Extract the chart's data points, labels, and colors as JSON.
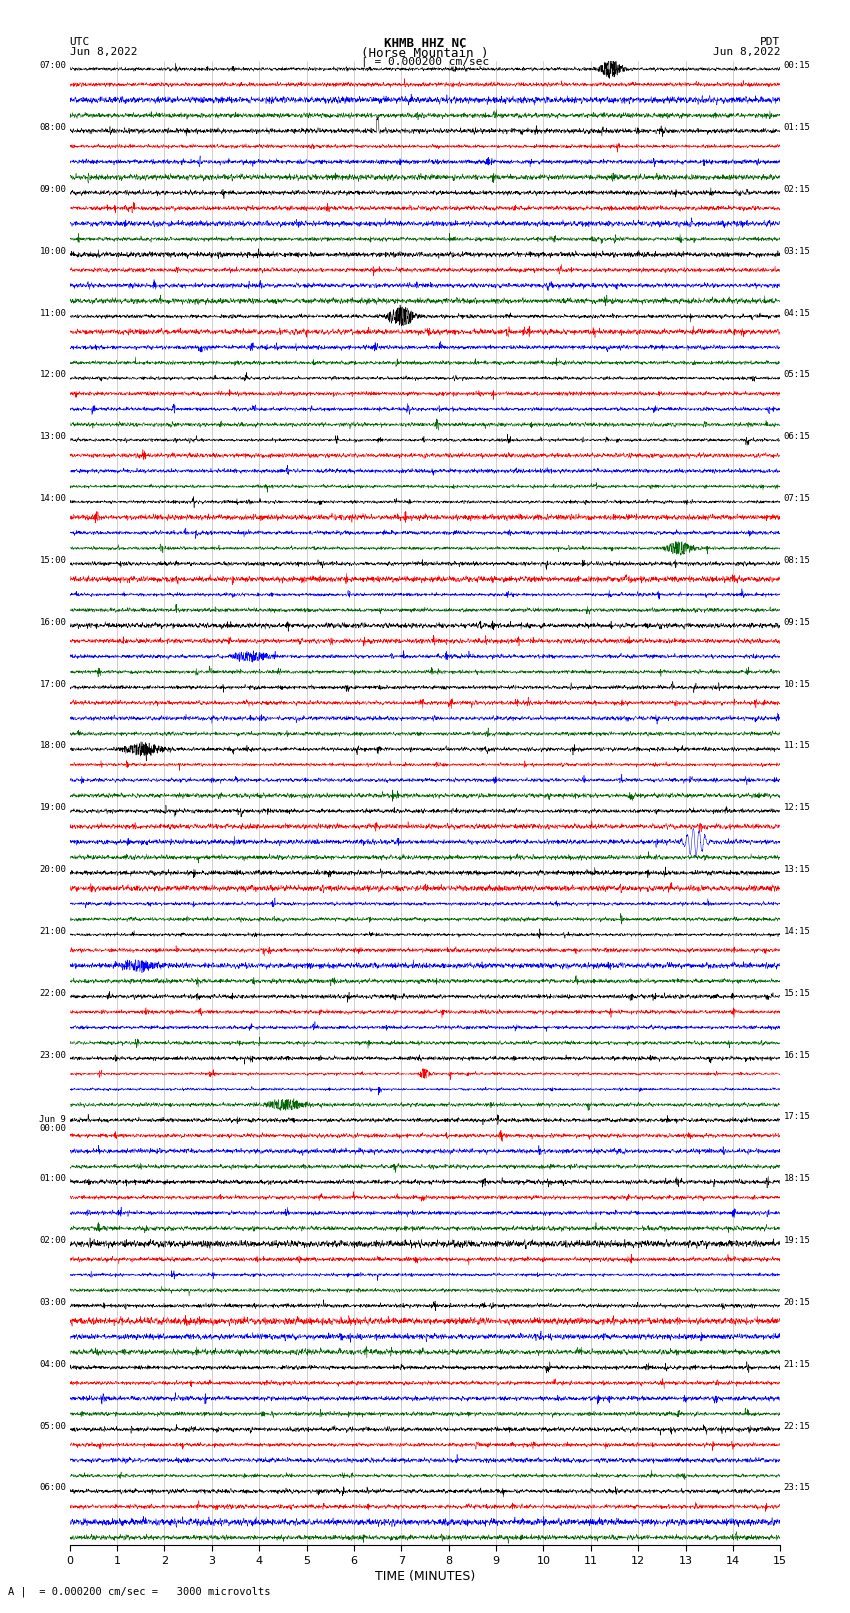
{
  "title_line1": "KHMB HHZ NC",
  "title_line2": "(Horse Mountain )",
  "title_scale": "| = 0.000200 cm/sec",
  "left_label": "UTC",
  "left_date": "Jun 8,2022",
  "right_label": "PDT",
  "right_date": "Jun 8,2022",
  "xlabel": "TIME (MINUTES)",
  "scale_text": "A |  = 0.000200 cm/sec =   3000 microvolts",
  "utc_times": [
    "07:00",
    "",
    "",
    "",
    "08:00",
    "",
    "",
    "",
    "09:00",
    "",
    "",
    "",
    "10:00",
    "",
    "",
    "",
    "11:00",
    "",
    "",
    "",
    "12:00",
    "",
    "",
    "",
    "13:00",
    "",
    "",
    "",
    "14:00",
    "",
    "",
    "",
    "15:00",
    "",
    "",
    "",
    "16:00",
    "",
    "",
    "",
    "17:00",
    "",
    "",
    "",
    "18:00",
    "",
    "",
    "",
    "19:00",
    "",
    "",
    "",
    "20:00",
    "",
    "",
    "",
    "21:00",
    "",
    "",
    "",
    "22:00",
    "",
    "",
    "",
    "23:00",
    "",
    "",
    "",
    "Jun 9\n00:00",
    "",
    "",
    "",
    "01:00",
    "",
    "",
    "",
    "02:00",
    "",
    "",
    "",
    "03:00",
    "",
    "",
    "",
    "04:00",
    "",
    "",
    "",
    "05:00",
    "",
    "",
    "",
    "06:00",
    "",
    "",
    ""
  ],
  "pdt_times": [
    "00:15",
    "",
    "",
    "",
    "01:15",
    "",
    "",
    "",
    "02:15",
    "",
    "",
    "",
    "03:15",
    "",
    "",
    "",
    "04:15",
    "",
    "",
    "",
    "05:15",
    "",
    "",
    "",
    "06:15",
    "",
    "",
    "",
    "07:15",
    "",
    "",
    "",
    "08:15",
    "",
    "",
    "",
    "09:15",
    "",
    "",
    "",
    "10:15",
    "",
    "",
    "",
    "11:15",
    "",
    "",
    "",
    "12:15",
    "",
    "",
    "",
    "13:15",
    "",
    "",
    "",
    "14:15",
    "",
    "",
    "",
    "15:15",
    "",
    "",
    "",
    "16:15",
    "",
    "",
    "",
    "17:15",
    "",
    "",
    "",
    "18:15",
    "",
    "",
    "",
    "19:15",
    "",
    "",
    "",
    "20:15",
    "",
    "",
    "",
    "21:15",
    "",
    "",
    "",
    "22:15",
    "",
    "",
    "",
    "23:15",
    "",
    "",
    ""
  ],
  "n_hours": 24,
  "traces_per_hour": 4,
  "colors": [
    "black",
    "red",
    "blue",
    "#006400"
  ],
  "background_color": "white",
  "figsize": [
    8.5,
    16.13
  ],
  "dpi": 100,
  "xmin": 0,
  "xmax": 15,
  "xticks": [
    0,
    1,
    2,
    3,
    4,
    5,
    6,
    7,
    8,
    9,
    10,
    11,
    12,
    13,
    14,
    15
  ]
}
